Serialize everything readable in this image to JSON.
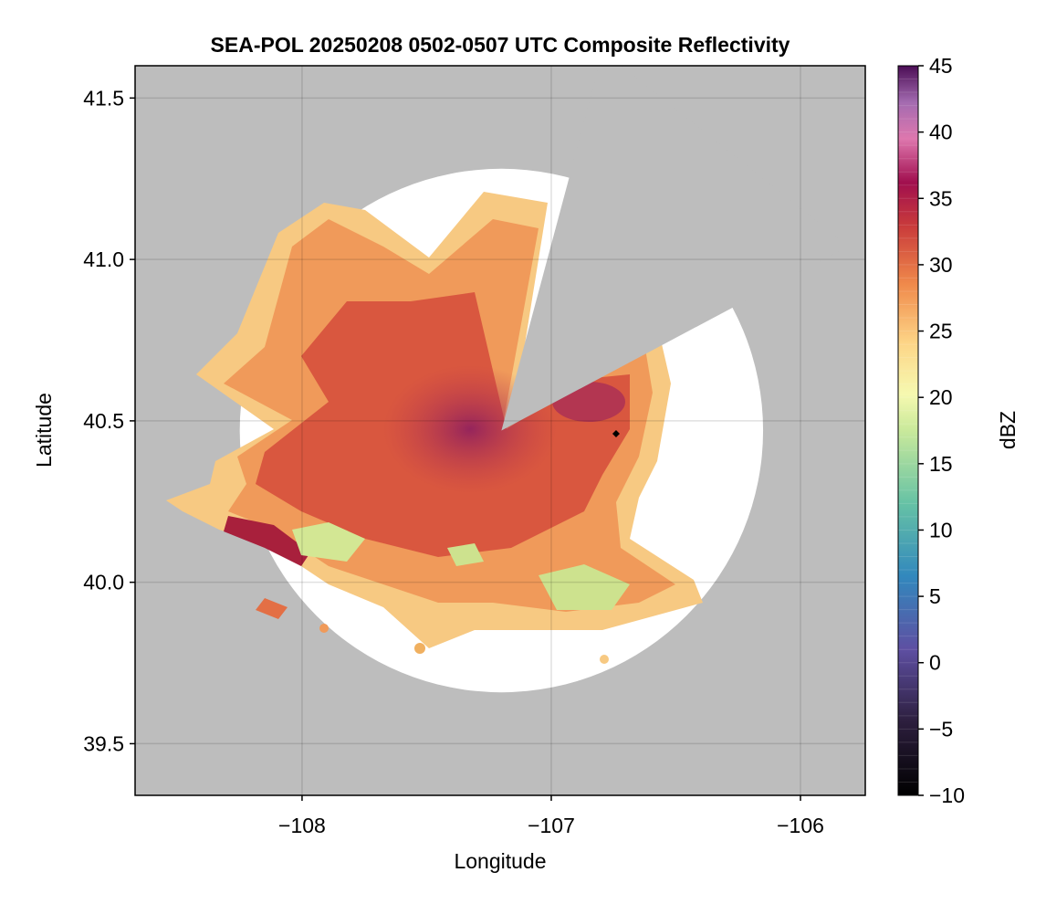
{
  "chart_data": {
    "type": "heatmap",
    "title": "SEA-POL 20250208 0502-0507 UTC Composite Reflectivity",
    "xlabel": "Longitude",
    "ylabel": "Latitude",
    "xlim": [
      -108.67,
      -105.74
    ],
    "ylim": [
      39.34,
      41.6
    ],
    "x_ticks": [
      -108,
      -107,
      -106
    ],
    "x_tick_labels": [
      "−108",
      "−107",
      "−106"
    ],
    "y_ticks": [
      39.5,
      40.0,
      40.5,
      41.0,
      41.5
    ],
    "y_tick_labels": [
      "39.5",
      "40.0",
      "40.5",
      "41.0",
      "41.5"
    ],
    "grid": true,
    "colorbar": {
      "label": "dBZ",
      "range": [
        -10,
        45
      ],
      "ticks": [
        -10,
        -5,
        0,
        5,
        10,
        15,
        20,
        25,
        30,
        35,
        40,
        45
      ],
      "tick_labels": [
        "−10",
        "−5",
        "0",
        "5",
        "10",
        "15",
        "20",
        "25",
        "30",
        "35",
        "40",
        "45"
      ],
      "colormap": "spectral",
      "levels": 55
    },
    "radar_center": {
      "lon": -107.2,
      "lat": 40.47
    },
    "coverage_radius_deg": 1.05,
    "blocked_sectors": [
      {
        "from_azimuth_deg": 15,
        "to_azimuth_deg": 62
      }
    ],
    "marker": {
      "lon": -106.74,
      "lat": 40.46,
      "shape": "diamond",
      "color": "#000000"
    },
    "no_data_color": "#bdbdbd",
    "background_in_range_color": "#ffffff",
    "echo_summary": [
      {
        "region": "core near radar",
        "lon": -107.3,
        "lat": 40.4,
        "dbz": 38
      },
      {
        "region": "northwest arm",
        "lon": -107.8,
        "lat": 40.75,
        "dbz": 27
      },
      {
        "region": "far northwest edge",
        "lon": -108.1,
        "lat": 40.9,
        "dbz": 19
      },
      {
        "region": "east of blocked sector",
        "lon": -106.8,
        "lat": 40.55,
        "dbz": 31
      },
      {
        "region": "southwest band",
        "lon": -108.2,
        "lat": 40.2,
        "dbz": 32
      },
      {
        "region": "southern band",
        "lon": -106.9,
        "lat": 40.05,
        "dbz": 28
      },
      {
        "region": "southeast light echo",
        "lon": -106.7,
        "lat": 39.98,
        "dbz": 14
      },
      {
        "region": "western light echo",
        "lon": -107.9,
        "lat": 40.12,
        "dbz": 14
      }
    ]
  }
}
